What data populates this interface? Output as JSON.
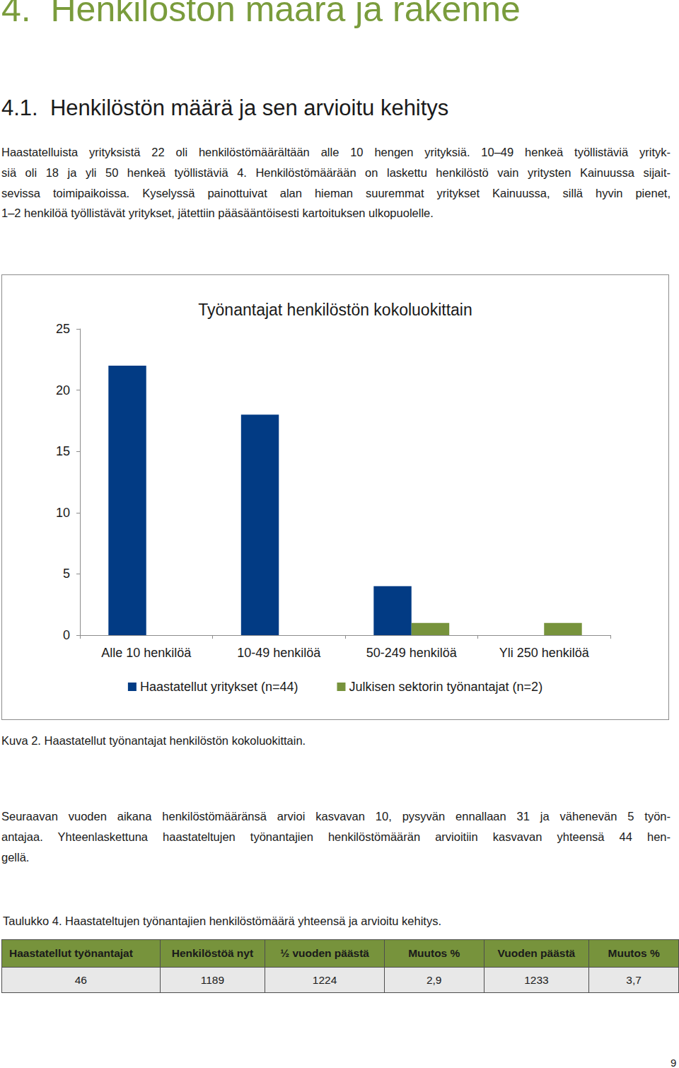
{
  "heading": "4.  Henkilöstön määrä ja rakenne",
  "subheading": "4.1.  Henkilöstön määrä ja sen arvioitu kehitys",
  "paragraph_1": [
    "Haastatelluista yrityksistä 22 oli henkilöstömäärältään alle 10 hengen yrityksiä. 10–49 henkeä työllistäviä yrityk-",
    "siä oli 18 ja yli 50 henkeä työllistäviä 4. Henkilöstömäärään on laskettu henkilöstö vain yritysten Kainuussa sijait-",
    "sevissa toimipaikoissa. Kyselyssä painottuivat alan hieman suuremmat yritykset Kainuussa, sillä hyvin pienet,",
    "1–2 henkilöä työllistävät yritykset, jätettiin pääsääntöisesti kartoituksen ulkopuolelle."
  ],
  "chart_data": {
    "type": "bar",
    "title": "Työnantajat henkilöstön kokoluokittain",
    "categories": [
      "Alle 10 henkilöä",
      "10-49 henkilöä",
      "50-249 henkilöä",
      "Yli 250 henkilöä"
    ],
    "series": [
      {
        "name": "Haastatellut yritykset (n=44)",
        "color": "#023b84",
        "values": [
          22,
          18,
          4,
          0
        ]
      },
      {
        "name": "Julkisen sektorin työnantajat (n=2)",
        "color": "#77933c",
        "values": [
          0,
          0,
          1,
          1
        ]
      }
    ],
    "ylim": [
      0,
      25
    ],
    "yticks": [
      0,
      5,
      10,
      15,
      20,
      25
    ],
    "grid": false,
    "legend": "bottom"
  },
  "caption": "Kuva 2. Haastatellut työnantajat henkilöstön kokoluokittain.",
  "paragraph_2": [
    "Seuraavan vuoden aikana henkilöstömääränsä arvioi kasvavan 10, pysyvän ennallaan 31 ja vähenevän 5 työn-",
    "antajaa. Yhteenlaskettuna haastateltujen työnantajien henkilöstömäärän arvioitiin kasvavan yhteensä 44 hen-",
    "gellä."
  ],
  "table_caption": "Taulukko 4. Haastateltujen työnantajien henkilöstömäärä yhteensä ja arvioitu kehitys.",
  "table": {
    "header": [
      "Haastatellut työnantajat",
      "Henkilöstöä nyt",
      "½ vuoden päästä",
      "Muutos %",
      "Vuoden päästä",
      "Muutos %"
    ],
    "rows": [
      [
        "46",
        "1189",
        "1224",
        "2,9",
        "1233",
        "3,7"
      ]
    ]
  },
  "page_number": "9"
}
